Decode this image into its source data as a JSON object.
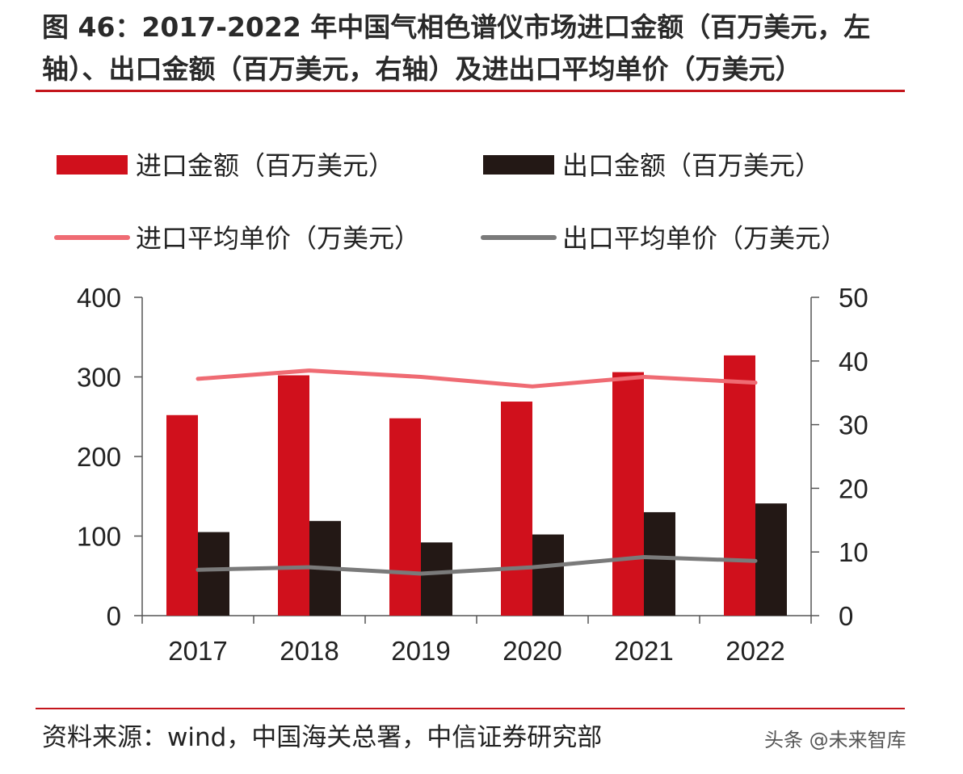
{
  "title": "图 46：2017-2022 年中国气相色谱仪市场进口金额（百万美元，左轴）、出口金额（百万美元，右轴）及进出口平均单价（万美元）",
  "source": "资料来源：wind，中国海关总署，中信证券研究部",
  "watermark": "头条 @未来智库",
  "colors": {
    "import_bar": "#d0101c",
    "export_bar": "#231815",
    "import_price_line": "#ef6b73",
    "export_price_line": "#7a7a7a",
    "rule": "#c4161c"
  },
  "chart_data": {
    "type": "bar",
    "categories": [
      "2017",
      "2018",
      "2019",
      "2020",
      "2021",
      "2022"
    ],
    "series": [
      {
        "name": "进口金额（百万美元）",
        "type": "bar",
        "axis": "left",
        "values": [
          252,
          302,
          248,
          269,
          306,
          327
        ]
      },
      {
        "name": "出口金额（百万美元）",
        "type": "bar",
        "axis": "left",
        "values": [
          105,
          119,
          92,
          102,
          130,
          141
        ]
      },
      {
        "name": "进口平均单价（万美元）",
        "type": "line",
        "axis": "right",
        "values": [
          37.2,
          38.5,
          37.5,
          36.0,
          37.5,
          36.6
        ]
      },
      {
        "name": "出口平均单价（万美元）",
        "type": "line",
        "axis": "right",
        "values": [
          7.2,
          7.6,
          6.6,
          7.6,
          9.2,
          8.6
        ]
      }
    ],
    "y_left": {
      "ticks": [
        "400",
        "300",
        "200",
        "100",
        "0"
      ],
      "lim": [
        0,
        400
      ]
    },
    "y_right": {
      "ticks": [
        "50",
        "40",
        "30",
        "20",
        "10",
        "0"
      ],
      "lim": [
        0,
        50
      ]
    },
    "grid": false,
    "legend_position": "top"
  }
}
